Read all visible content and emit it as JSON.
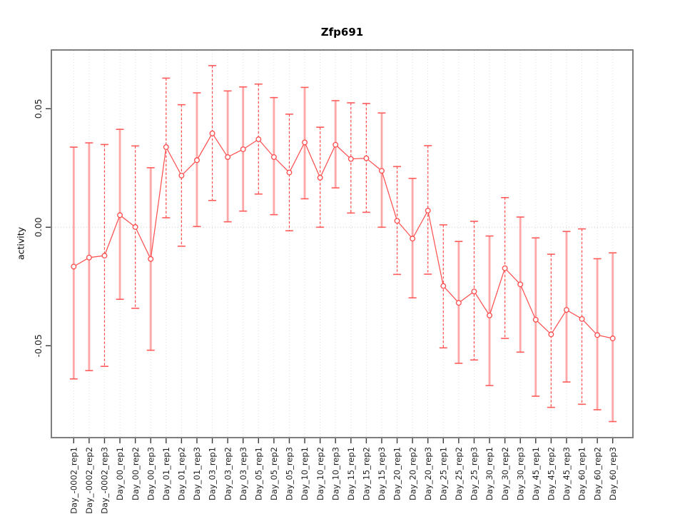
{
  "figure": {
    "title": "Zfp691",
    "y_axis_label": "activity",
    "background_color": "#ffffff",
    "box_color": "#7f7f7f",
    "grid_color": "#dcdcdc",
    "zero_line_color": "#c9c9c9",
    "tick_color": "#3a3a3a",
    "tick_label_color": "#1f1f1f"
  },
  "chart_data": {
    "type": "line",
    "title": "Zfp691",
    "xlabel": "",
    "ylabel": "activity",
    "ylim": [
      -0.089,
      0.075
    ],
    "grid": "vertical dotted gridline per category; dotted horizontal line at y=0 only",
    "legend": "none",
    "marker": "open-circle",
    "series_color": "#ff4b4b",
    "error_bar_colors": {
      "solid": "#ffa6a6",
      "dashed": "#ff4b4b",
      "cap": "#ff5b5b"
    },
    "y_ticks": [
      {
        "value": 0.05,
        "label": "0.05"
      },
      {
        "value": 0.0,
        "label": "0.00"
      },
      {
        "value": -0.05,
        "label": "-0.05"
      }
    ],
    "points": [
      {
        "label": "Day_-0002_rep1",
        "value": -0.0166,
        "err_lo": -0.064,
        "err_hi": 0.0338,
        "bar_style": "solid"
      },
      {
        "label": "Day_-0002_rep2",
        "value": -0.0128,
        "err_lo": -0.0605,
        "err_hi": 0.0356,
        "bar_style": "solid"
      },
      {
        "label": "Day_-0002_rep3",
        "value": -0.012,
        "err_lo": -0.0587,
        "err_hi": 0.0349,
        "bar_style": "dashed"
      },
      {
        "label": "Day_00_rep1",
        "value": 0.0051,
        "err_lo": -0.0304,
        "err_hi": 0.0413,
        "bar_style": "solid"
      },
      {
        "label": "Day_00_rep2",
        "value": 0.0001,
        "err_lo": -0.0342,
        "err_hi": 0.0343,
        "bar_style": "dashed"
      },
      {
        "label": "Day_00_rep3",
        "value": -0.0134,
        "err_lo": -0.0519,
        "err_hi": 0.0251,
        "bar_style": "solid"
      },
      {
        "label": "Day_01_rep1",
        "value": 0.0338,
        "err_lo": 0.004,
        "err_hi": 0.0629,
        "bar_style": "dashed"
      },
      {
        "label": "Day_01_rep2",
        "value": 0.0218,
        "err_lo": -0.008,
        "err_hi": 0.0517,
        "bar_style": "dashed"
      },
      {
        "label": "Day_01_rep3",
        "value": 0.0283,
        "err_lo": 0.0003,
        "err_hi": 0.0567,
        "bar_style": "solid"
      },
      {
        "label": "Day_03_rep1",
        "value": 0.0396,
        "err_lo": 0.0113,
        "err_hi": 0.0682,
        "bar_style": "dashed"
      },
      {
        "label": "Day_03_rep2",
        "value": 0.0296,
        "err_lo": 0.0023,
        "err_hi": 0.0575,
        "bar_style": "solid"
      },
      {
        "label": "Day_03_rep3",
        "value": 0.0329,
        "err_lo": 0.0068,
        "err_hi": 0.0592,
        "bar_style": "solid"
      },
      {
        "label": "Day_05_rep1",
        "value": 0.0371,
        "err_lo": 0.014,
        "err_hi": 0.0604,
        "bar_style": "dashed"
      },
      {
        "label": "Day_05_rep2",
        "value": 0.0296,
        "err_lo": 0.0053,
        "err_hi": 0.0547,
        "bar_style": "solid"
      },
      {
        "label": "Day_05_rep3",
        "value": 0.0231,
        "err_lo": -0.0015,
        "err_hi": 0.0477,
        "bar_style": "dashed"
      },
      {
        "label": "Day_10_rep1",
        "value": 0.0358,
        "err_lo": 0.012,
        "err_hi": 0.059,
        "bar_style": "solid"
      },
      {
        "label": "Day_10_rep2",
        "value": 0.0209,
        "err_lo": 0.0,
        "err_hi": 0.0422,
        "bar_style": "dashed"
      },
      {
        "label": "Day_10_rep3",
        "value": 0.0348,
        "err_lo": 0.0166,
        "err_hi": 0.0534,
        "bar_style": "solid"
      },
      {
        "label": "Day_15_rep1",
        "value": 0.0288,
        "err_lo": 0.006,
        "err_hi": 0.0525,
        "bar_style": "dashed"
      },
      {
        "label": "Day_15_rep2",
        "value": 0.0291,
        "err_lo": 0.0063,
        "err_hi": 0.0522,
        "bar_style": "dashed"
      },
      {
        "label": "Day_15_rep3",
        "value": 0.0238,
        "err_lo": 0.0,
        "err_hi": 0.0482,
        "bar_style": "solid"
      },
      {
        "label": "Day_20_rep1",
        "value": 0.0027,
        "err_lo": -0.0199,
        "err_hi": 0.0256,
        "bar_style": "dashed"
      },
      {
        "label": "Day_20_rep2",
        "value": -0.0048,
        "err_lo": -0.0298,
        "err_hi": 0.0206,
        "bar_style": "solid"
      },
      {
        "label": "Day_20_rep3",
        "value": 0.007,
        "err_lo": -0.0198,
        "err_hi": 0.0344,
        "bar_style": "dashed"
      },
      {
        "label": "Day_25_rep1",
        "value": -0.0248,
        "err_lo": -0.0509,
        "err_hi": 0.001,
        "bar_style": "dashed"
      },
      {
        "label": "Day_25_rep2",
        "value": -0.0319,
        "err_lo": -0.0574,
        "err_hi": -0.006,
        "bar_style": "solid"
      },
      {
        "label": "Day_25_rep3",
        "value": -0.0271,
        "err_lo": -0.056,
        "err_hi": 0.0025,
        "bar_style": "dashed"
      },
      {
        "label": "Day_30_rep1",
        "value": -0.0372,
        "err_lo": -0.0668,
        "err_hi": -0.0037,
        "bar_style": "solid"
      },
      {
        "label": "Day_30_rep2",
        "value": -0.0173,
        "err_lo": -0.0469,
        "err_hi": 0.0125,
        "bar_style": "dashed"
      },
      {
        "label": "Day_30_rep3",
        "value": -0.0241,
        "err_lo": -0.0527,
        "err_hi": 0.0043,
        "bar_style": "solid"
      },
      {
        "label": "Day_45_rep1",
        "value": -0.039,
        "err_lo": -0.0713,
        "err_hi": -0.0045,
        "bar_style": "solid"
      },
      {
        "label": "Day_45_rep2",
        "value": -0.0452,
        "err_lo": -0.076,
        "err_hi": -0.0114,
        "bar_style": "dashed"
      },
      {
        "label": "Day_45_rep3",
        "value": -0.0349,
        "err_lo": -0.0653,
        "err_hi": -0.0018,
        "bar_style": "solid"
      },
      {
        "label": "Day_60_rep1",
        "value": -0.0387,
        "err_lo": -0.0747,
        "err_hi": -0.0007,
        "bar_style": "dashed"
      },
      {
        "label": "Day_60_rep2",
        "value": -0.0455,
        "err_lo": -0.077,
        "err_hi": -0.0133,
        "bar_style": "solid"
      },
      {
        "label": "Day_60_rep3",
        "value": -0.0469,
        "err_lo": -0.082,
        "err_hi": -0.0108,
        "bar_style": "solid"
      }
    ]
  }
}
